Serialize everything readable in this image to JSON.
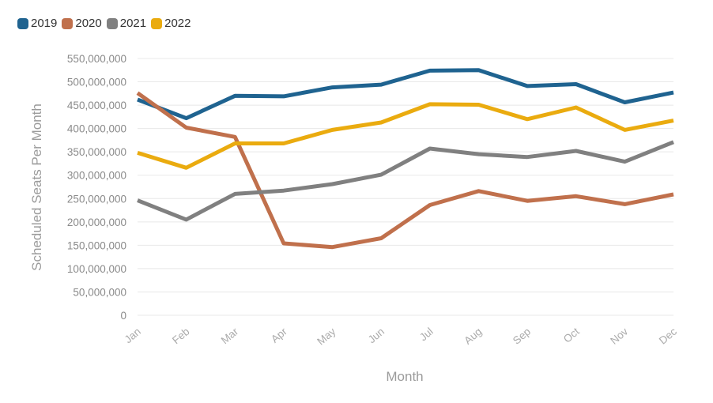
{
  "chart_data": {
    "type": "line",
    "xlabel": "Month",
    "ylabel": "Scheduled Seats Per Month",
    "ylim": [
      0,
      550000000
    ],
    "yticks": [
      0,
      50000000,
      100000000,
      150000000,
      200000000,
      250000000,
      300000000,
      350000000,
      400000000,
      450000000,
      500000000,
      550000000
    ],
    "ytick_labels": [
      "0",
      "50,000,000",
      "100,000,000",
      "150,000,000",
      "200,000,000",
      "250,000,000",
      "300,000,000",
      "350,000,000",
      "400,000,000",
      "450,000,000",
      "500,000,000",
      "550,000,000"
    ],
    "categories": [
      "Jan",
      "Feb",
      "Mar",
      "Apr",
      "May",
      "Jun",
      "Jul",
      "Aug",
      "Sep",
      "Oct",
      "Nov",
      "Dec"
    ],
    "grid": true,
    "legend_position": "top-left",
    "series": [
      {
        "name": "2019",
        "color": "#1f6390",
        "values": [
          462000000,
          422000000,
          470000000,
          469000000,
          488000000,
          494000000,
          524000000,
          525000000,
          491000000,
          495000000,
          456000000,
          477000000
        ]
      },
      {
        "name": "2020",
        "color": "#c0704c",
        "values": [
          476000000,
          402000000,
          382000000,
          154000000,
          146000000,
          165000000,
          236000000,
          266000000,
          245000000,
          255000000,
          238000000,
          259000000
        ]
      },
      {
        "name": "2021",
        "color": "#808080",
        "values": [
          246000000,
          205000000,
          260000000,
          267000000,
          281000000,
          301000000,
          357000000,
          345000000,
          339000000,
          352000000,
          329000000,
          371000000
        ]
      },
      {
        "name": "2022",
        "color": "#eaab0f",
        "values": [
          348000000,
          316000000,
          368000000,
          368000000,
          397000000,
          413000000,
          452000000,
          451000000,
          420000000,
          445000000,
          397000000,
          417000000
        ]
      }
    ]
  }
}
